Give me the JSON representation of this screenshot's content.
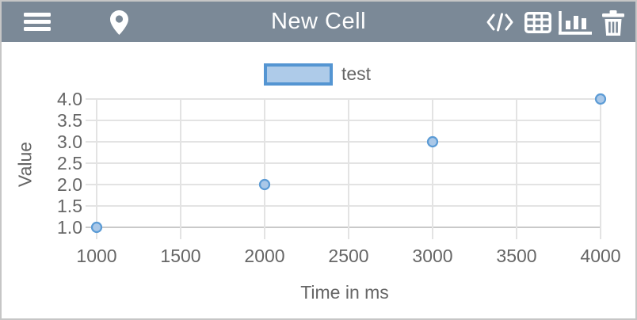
{
  "header": {
    "title": "New Cell",
    "icons": {
      "menu": "hamburger-menu",
      "pin": "location-pin",
      "code": "code-view",
      "table": "table-view",
      "chart": "chart-view",
      "trash": "delete-cell"
    }
  },
  "colors": {
    "header_bg": "#7b8997",
    "page_border": "#c6c6c6",
    "grid": "#e3e3e3",
    "axis_line": "#c9c9c9",
    "chart_text": "#666666",
    "point_fill": "#aac8e8",
    "point_border": "#5b9bd5",
    "legend_fill": "#aecbe9",
    "legend_border": "#5495d2"
  },
  "chart_data": {
    "type": "scatter",
    "series": [
      {
        "name": "test",
        "points": [
          [
            1000,
            1.0
          ],
          [
            2000,
            2.0
          ],
          [
            3000,
            3.0
          ],
          [
            4000,
            4.0
          ]
        ]
      }
    ],
    "title": "",
    "xlabel": "Time in ms",
    "ylabel": "Value",
    "xlim": [
      1000,
      4000
    ],
    "ylim": [
      1.0,
      4.0
    ],
    "x_ticks": [
      1000,
      1500,
      2000,
      2500,
      3000,
      3500,
      4000
    ],
    "y_ticks": [
      1.0,
      1.5,
      2.0,
      2.5,
      3.0,
      3.5,
      4.0
    ],
    "y_tick_decimals": 1,
    "grid": true,
    "legend_position": "top-center"
  }
}
